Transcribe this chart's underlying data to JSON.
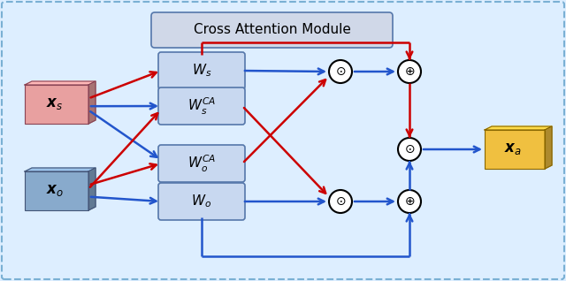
{
  "fig_width": 6.4,
  "fig_height": 3.18,
  "bg_color": "#ddeeff",
  "border_color": "#7ab0d4",
  "title_box_color": "#d0d8e8",
  "title_text": "Cross Attention Module",
  "title_fontsize": 11,
  "ws_box_color": "#c8d8f0",
  "ws_border_color": "#5577aa",
  "xs_color": "#e8a0a0",
  "xs_border": "#884455",
  "xo_color": "#88aacc",
  "xo_border": "#445577",
  "xa_color": "#f0c040",
  "xa_border": "#886600",
  "red_color": "#cc0000",
  "blue_color": "#2255cc",
  "arrow_lw": 1.8
}
